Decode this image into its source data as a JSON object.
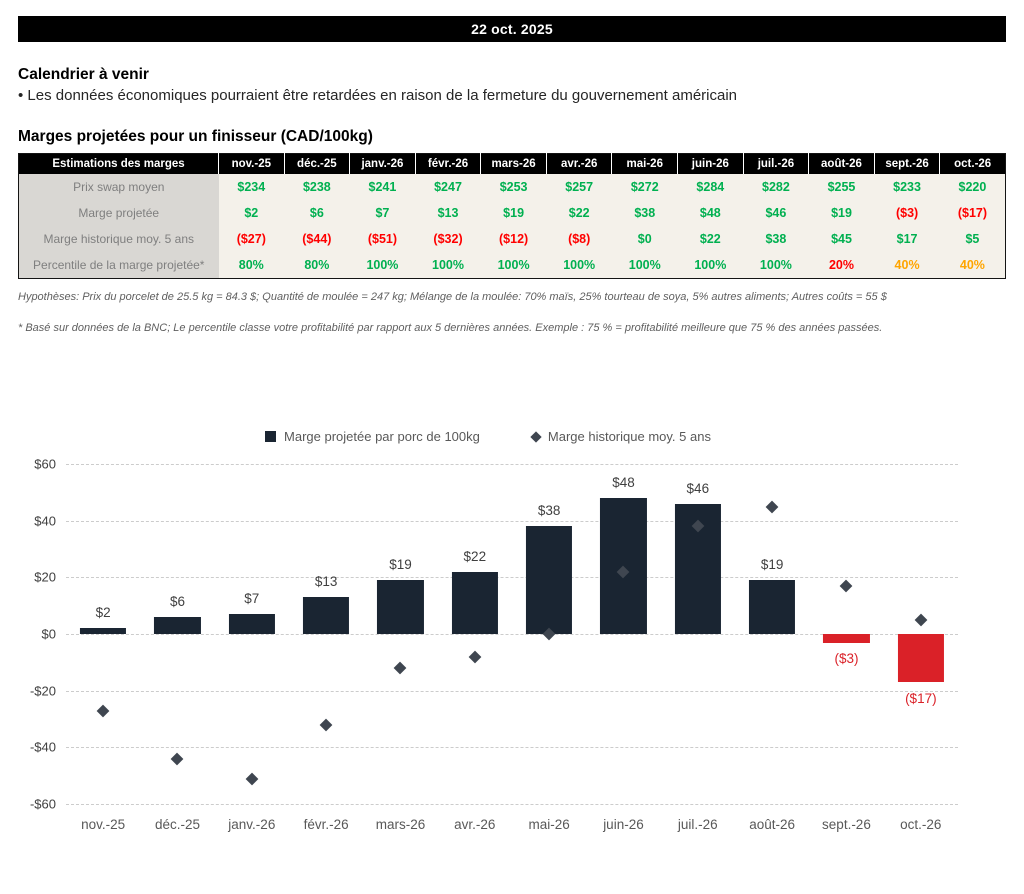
{
  "banner": {
    "date": "22 oct. 2025"
  },
  "calendar": {
    "title": "Calendrier à venir",
    "bullet": "• Les données économiques pourraient être retardées en raison de la fermeture du gouvernement américain"
  },
  "margins": {
    "title": "Marges projetées pour un finisseur (CAD/100kg)",
    "table": {
      "header": [
        "Estimations des marges",
        "nov.-25",
        "déc.-25",
        "janv.-26",
        "févr.-26",
        "mars-26",
        "avr.-26",
        "mai-26",
        "juin-26",
        "juil.-26",
        "août-26",
        "sept.-26",
        "oct.-26"
      ],
      "rows": [
        {
          "label": "Prix swap moyen",
          "cells": [
            {
              "text": "$234",
              "color": "green"
            },
            {
              "text": "$238",
              "color": "green"
            },
            {
              "text": "$241",
              "color": "green"
            },
            {
              "text": "$247",
              "color": "green"
            },
            {
              "text": "$253",
              "color": "green"
            },
            {
              "text": "$257",
              "color": "green"
            },
            {
              "text": "$272",
              "color": "green"
            },
            {
              "text": "$284",
              "color": "green"
            },
            {
              "text": "$282",
              "color": "green"
            },
            {
              "text": "$255",
              "color": "green"
            },
            {
              "text": "$233",
              "color": "green"
            },
            {
              "text": "$220",
              "color": "green"
            }
          ]
        },
        {
          "label": "Marge projetée",
          "cells": [
            {
              "text": "$2",
              "color": "green"
            },
            {
              "text": "$6",
              "color": "green"
            },
            {
              "text": "$7",
              "color": "green"
            },
            {
              "text": "$13",
              "color": "green"
            },
            {
              "text": "$19",
              "color": "green"
            },
            {
              "text": "$22",
              "color": "green"
            },
            {
              "text": "$38",
              "color": "green"
            },
            {
              "text": "$48",
              "color": "green"
            },
            {
              "text": "$46",
              "color": "green"
            },
            {
              "text": "$19",
              "color": "green"
            },
            {
              "text": "($3)",
              "color": "red"
            },
            {
              "text": "($17)",
              "color": "red"
            }
          ]
        },
        {
          "label": "Marge historique moy. 5 ans",
          "cells": [
            {
              "text": "($27)",
              "color": "red"
            },
            {
              "text": "($44)",
              "color": "red"
            },
            {
              "text": "($51)",
              "color": "red"
            },
            {
              "text": "($32)",
              "color": "red"
            },
            {
              "text": "($12)",
              "color": "red"
            },
            {
              "text": "($8)",
              "color": "red"
            },
            {
              "text": "$0",
              "color": "green"
            },
            {
              "text": "$22",
              "color": "green"
            },
            {
              "text": "$38",
              "color": "green"
            },
            {
              "text": "$45",
              "color": "green"
            },
            {
              "text": "$17",
              "color": "green"
            },
            {
              "text": "$5",
              "color": "green"
            }
          ]
        },
        {
          "label": "Percentile de la marge projetée*",
          "cells": [
            {
              "text": "80%",
              "color": "green"
            },
            {
              "text": "80%",
              "color": "green"
            },
            {
              "text": "100%",
              "color": "green"
            },
            {
              "text": "100%",
              "color": "green"
            },
            {
              "text": "100%",
              "color": "green"
            },
            {
              "text": "100%",
              "color": "green"
            },
            {
              "text": "100%",
              "color": "green"
            },
            {
              "text": "100%",
              "color": "green"
            },
            {
              "text": "100%",
              "color": "green"
            },
            {
              "text": "20%",
              "color": "red"
            },
            {
              "text": "40%",
              "color": "orange"
            },
            {
              "text": "40%",
              "color": "orange"
            }
          ]
        }
      ]
    },
    "footnote_hypotheses": "Hypothèses: Prix du porcelet de 25.5 kg = 84.3 $; Quantité de moulée = 247 kg; Mélange de la moulée: 70% maïs, 25% tourteau de soya, 5% autres aliments; Autres coûts = 55 $",
    "footnote_percentile": "* Basé sur données de la BNC; Le percentile classe votre profitabilité par rapport aux 5 dernières années. Exemple : 75 % = profitabilité meilleure que 75 % des années passées."
  },
  "chart_data": {
    "type": "bar",
    "categories": [
      "nov.-25",
      "déc.-25",
      "janv.-26",
      "févr.-26",
      "mars-26",
      "avr.-26",
      "mai-26",
      "juin-26",
      "juil.-26",
      "août-26",
      "sept.-26",
      "oct.-26"
    ],
    "series": [
      {
        "name": "Marge projetée par porc de 100kg",
        "type": "bar",
        "values": [
          2,
          6,
          7,
          13,
          19,
          22,
          38,
          48,
          46,
          19,
          -3,
          -17
        ],
        "labels": [
          "$2",
          "$6",
          "$7",
          "$13",
          "$19",
          "$22",
          "$38",
          "$48",
          "$46",
          "$19",
          "($3)",
          "($17)"
        ]
      },
      {
        "name": "Marge historique moy. 5 ans",
        "type": "scatter",
        "marker": "diamond",
        "values": [
          -27,
          -44,
          -51,
          -32,
          -12,
          -8,
          0,
          22,
          38,
          45,
          17,
          5
        ]
      }
    ],
    "ylim": [
      -60,
      60
    ],
    "ytick_step": 20,
    "ytick_labels": [
      "$60",
      "$40",
      "$20",
      "$0",
      "-$20",
      "-$40",
      "-$60"
    ],
    "grid": "dashed",
    "legend_position": "top",
    "colors": {
      "bar_positive": "#1a2532",
      "bar_negative": "#da2128",
      "marker": "#3f4650",
      "label_negative": "#da2128"
    }
  }
}
